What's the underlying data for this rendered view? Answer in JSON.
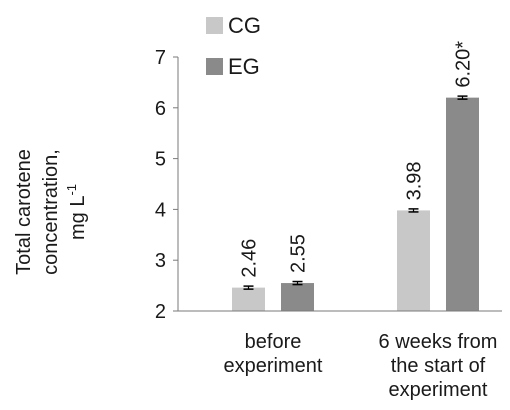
{
  "chart_data": {
    "type": "bar",
    "categories": [
      [
        "before",
        "experiment"
      ],
      [
        "6 weeks from",
        "the start of",
        "experiment"
      ]
    ],
    "series": [
      {
        "name": "CG",
        "color": "#c8c8c8",
        "values": [
          2.46,
          3.98
        ],
        "labels": [
          "2.46",
          "3.98"
        ],
        "errors": [
          0.03,
          0.03
        ]
      },
      {
        "name": "EG",
        "color": "#8a8a8a",
        "values": [
          2.55,
          6.2
        ],
        "labels": [
          "2.55",
          "6.20*"
        ],
        "errors": [
          0.03,
          0.03
        ]
      }
    ],
    "ylabel": [
      "Total carotene",
      "concentration,",
      "mg L"
    ],
    "ylabel_superscript": "-1",
    "ylim": [
      2,
      7
    ],
    "yticks": [
      2,
      3,
      4,
      5,
      6,
      7
    ],
    "grid": false,
    "legend_position": "top-left"
  }
}
